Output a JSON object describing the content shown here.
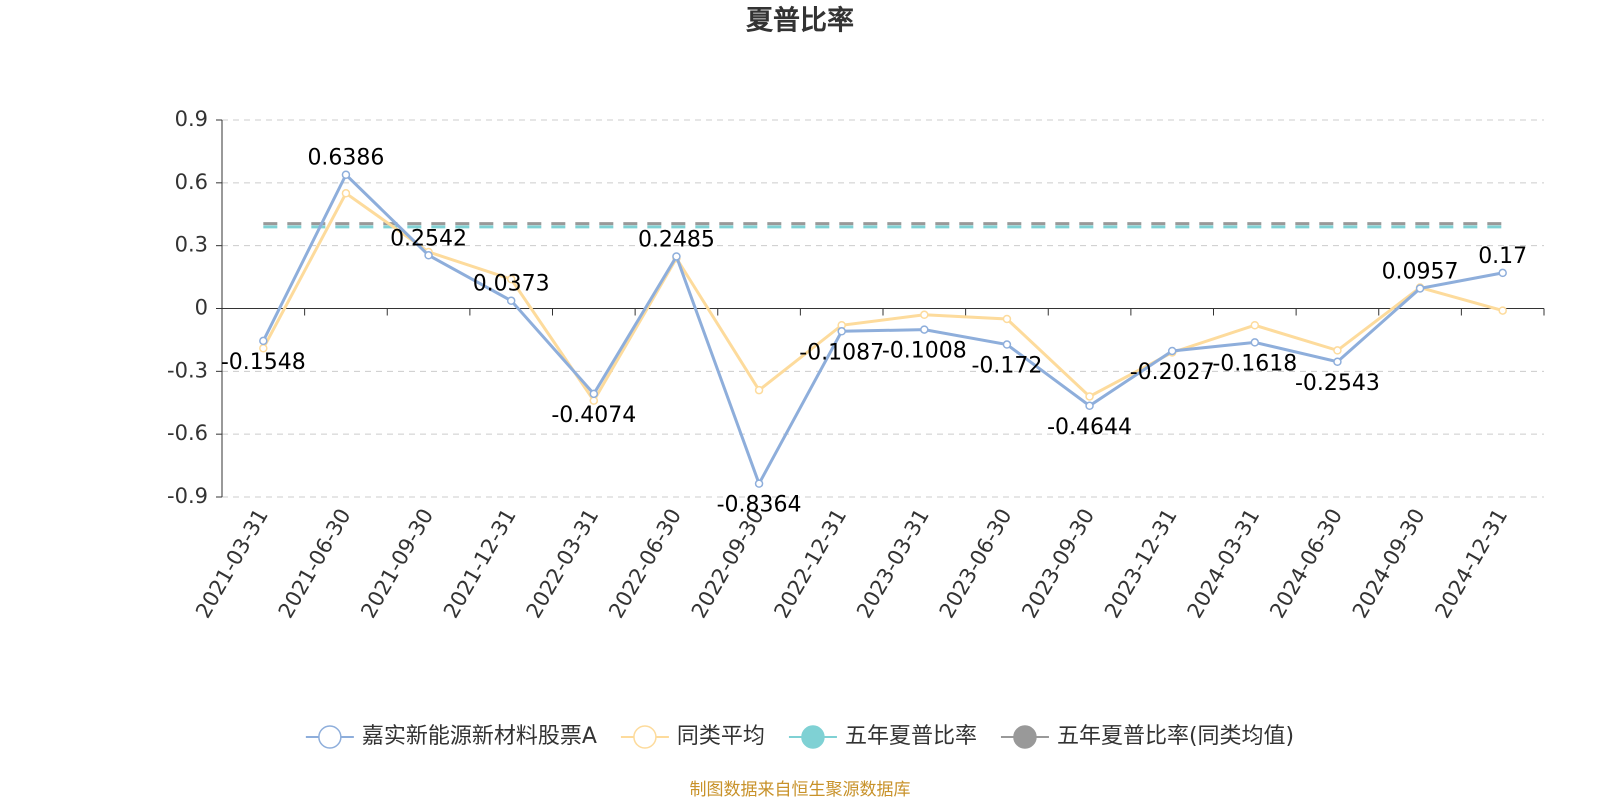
{
  "chart_data": {
    "type": "line",
    "title": "夏普比率",
    "categories": [
      "2021-03-31",
      "2021-06-30",
      "2021-09-30",
      "2021-12-31",
      "2022-03-31",
      "2022-06-30",
      "2022-09-30",
      "2022-12-31",
      "2023-03-31",
      "2023-06-30",
      "2023-09-30",
      "2023-12-31",
      "2024-03-31",
      "2024-06-30",
      "2024-09-30",
      "2024-12-31"
    ],
    "series": [
      {
        "name": "嘉实新能源新材料股票A",
        "color": "#8eaedb",
        "values": [
          -0.1548,
          0.6386,
          0.2542,
          0.0373,
          -0.4074,
          0.2485,
          -0.8364,
          -0.1087,
          -0.1008,
          -0.172,
          -0.4644,
          -0.2027,
          -0.1618,
          -0.2543,
          0.0957,
          0.17
        ],
        "labels": true
      },
      {
        "name": "同类平均",
        "color": "#fddb9c",
        "values": [
          -0.19,
          0.55,
          0.27,
          0.14,
          -0.44,
          0.24,
          -0.39,
          -0.08,
          -0.03,
          -0.05,
          -0.42,
          -0.21,
          -0.08,
          -0.2,
          0.1,
          -0.01
        ]
      }
    ],
    "reference_series": [
      {
        "name": "五年夏普比率",
        "color": "#7fd1d4",
        "value": 0.39
      },
      {
        "name": "五年夏普比率(同类均值)",
        "color": "#999999",
        "value": 0.405
      }
    ],
    "ylim": [
      -0.9,
      0.9
    ],
    "yticks": [
      -0.9,
      -0.6,
      -0.3,
      0,
      0.3,
      0.6,
      0.9
    ],
    "grid": true,
    "source": "制图数据来自恒生聚源数据库"
  }
}
